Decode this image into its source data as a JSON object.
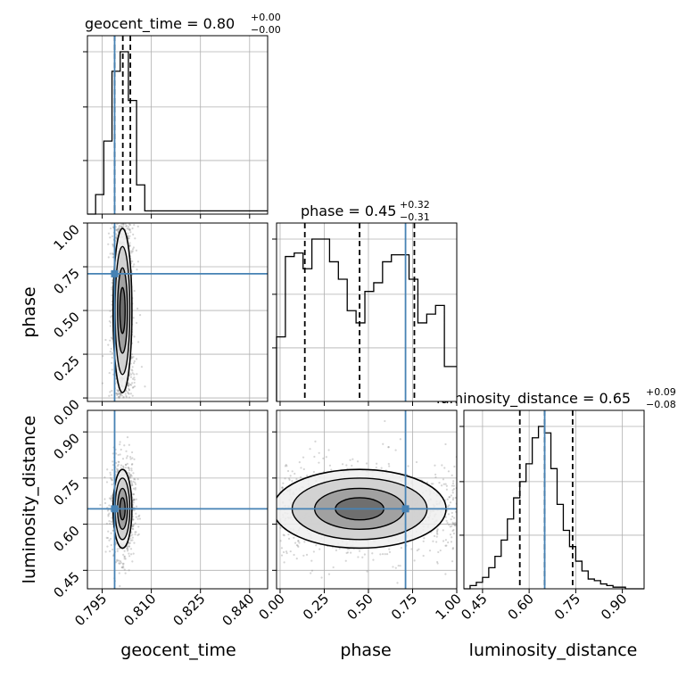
{
  "chart_data": {
    "type": "corner",
    "parameters": [
      "geocent_time",
      "phase",
      "luminosity_distance"
    ],
    "colors": {
      "truth": "#4682b4",
      "hist": "#000000",
      "scatter": "#888888",
      "grid": "#b0b0b0"
    },
    "grid": true,
    "geocent_time": {
      "label": "geocent_time",
      "title": "geocent_time = 0.80",
      "title_upper": "+0.00",
      "title_lower": "−0.00",
      "truth": 0.7988,
      "quantiles": [
        0.7988,
        0.8013,
        0.8036
      ],
      "range": [
        0.7905,
        0.8455
      ],
      "ticks": [
        0.795,
        0.81,
        0.825,
        0.84
      ],
      "tick_labels": [
        "0.795",
        "0.810",
        "0.825",
        "0.840"
      ],
      "hist_edges": [
        0.7905,
        0.793,
        0.7955,
        0.798,
        0.8005,
        0.803,
        0.8055,
        0.808,
        0.8455
      ],
      "hist_counts": [
        0,
        0.12,
        0.45,
        0.88,
        1.0,
        0.7,
        0.18,
        0.02
      ],
      "hist_ticks": [
        0.33,
        0.66,
        1.0
      ]
    },
    "phase": {
      "label": "phase",
      "title": "phase = 0.45",
      "title_upper": "+0.32",
      "title_lower": "−0.31",
      "truth": 0.71,
      "quantiles": [
        0.14,
        0.45,
        0.76
      ],
      "range": [
        -0.02,
        1.0
      ],
      "ticks": [
        0.0,
        0.25,
        0.5,
        0.75,
        1.0
      ],
      "tick_labels": [
        "0.00",
        "0.25",
        "0.50",
        "0.75",
        "1.00"
      ],
      "hist_edges": [
        -0.02,
        0.03,
        0.08,
        0.13,
        0.18,
        0.23,
        0.28,
        0.33,
        0.38,
        0.43,
        0.48,
        0.53,
        0.58,
        0.63,
        0.68,
        0.73,
        0.78,
        0.83,
        0.88,
        0.93,
        0.98,
        1.0
      ],
      "hist_counts": [
        0.37,
        0.83,
        0.85,
        0.76,
        0.93,
        0.93,
        0.8,
        0.7,
        0.52,
        0.45,
        0.63,
        0.68,
        0.8,
        0.84,
        0.84,
        0.7,
        0.45,
        0.5,
        0.55,
        0.2,
        0.2
      ],
      "hist_ticks": [
        0.33,
        0.66,
        1.0
      ]
    },
    "luminosity_distance": {
      "label": "luminosity_distance",
      "title": "luminosity_distance = 0.65",
      "title_upper": "+0.09",
      "title_lower": "−0.08",
      "truth": 0.65,
      "quantiles": [
        0.57,
        0.65,
        0.74
      ],
      "range": [
        0.39,
        0.97
      ],
      "ticks": [
        0.45,
        0.6,
        0.75,
        0.9
      ],
      "tick_labels": [
        "0.45",
        "0.60",
        "0.75",
        "0.90"
      ],
      "hist_edges": [
        0.39,
        0.41,
        0.43,
        0.45,
        0.47,
        0.49,
        0.51,
        0.53,
        0.55,
        0.57,
        0.59,
        0.61,
        0.63,
        0.65,
        0.67,
        0.69,
        0.71,
        0.73,
        0.75,
        0.77,
        0.79,
        0.81,
        0.83,
        0.85,
        0.87,
        0.89,
        0.91,
        0.93,
        0.97
      ],
      "hist_counts": [
        0.0,
        0.02,
        0.04,
        0.07,
        0.13,
        0.2,
        0.3,
        0.43,
        0.56,
        0.66,
        0.77,
        0.93,
        1.0,
        0.96,
        0.74,
        0.52,
        0.36,
        0.26,
        0.17,
        0.11,
        0.06,
        0.05,
        0.03,
        0.02,
        0.01,
        0.01,
        0.0,
        0.0
      ],
      "hist_ticks": [
        0.33,
        0.66,
        1.0
      ]
    },
    "pairs": [
      {
        "x": "geocent_time",
        "y": "phase",
        "center": [
          0.8012,
          0.5
        ],
        "spread": [
          0.0018,
          0.3
        ],
        "shape": "band"
      },
      {
        "x": "geocent_time",
        "y": "luminosity_distance",
        "center": [
          0.8012,
          0.65
        ],
        "spread": [
          0.0018,
          0.08
        ],
        "shape": "blob"
      },
      {
        "x": "phase",
        "y": "luminosity_distance",
        "center": [
          0.45,
          0.65
        ],
        "spread": [
          0.3,
          0.08
        ],
        "shape": "band-h"
      }
    ]
  }
}
